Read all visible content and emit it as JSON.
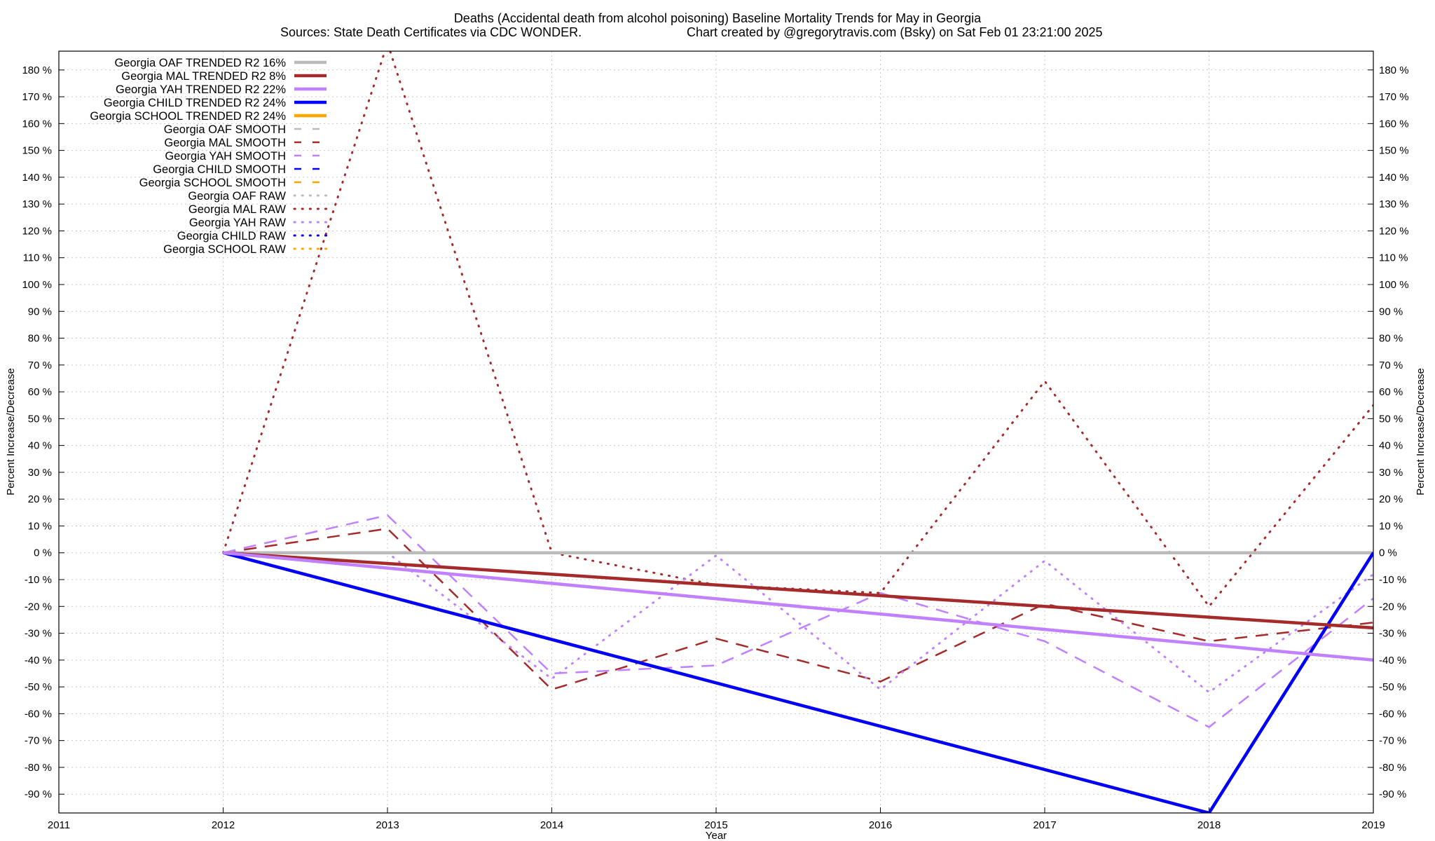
{
  "title": "Deaths (Accidental death from alcohol poisoning)  Baseline Mortality Trends for May in Georgia",
  "subtitle_left": "Sources: State Death Certificates via CDC WONDER.",
  "subtitle_right": "Chart created by @gregorytravis.com (Bsky) on Sat Feb 01 23:21:00 2025",
  "xlabel": "Year",
  "ylabel_left": "Percent Increase/Decrease",
  "ylabel_right": "Percent Increase/Decrease",
  "chart_data": {
    "type": "line",
    "title": "Deaths (Accidental death from alcohol poisoning)  Baseline Mortality Trends for May in Georgia",
    "xlabel": "Year",
    "ylabel": "Percent Increase/Decrease",
    "xlim": [
      2011,
      2019
    ],
    "ylim": [
      -97,
      187
    ],
    "x_ticks": [
      2011,
      2012,
      2013,
      2014,
      2015,
      2016,
      2017,
      2018,
      2019
    ],
    "y_ticks": [
      -90,
      -80,
      -70,
      -60,
      -50,
      -40,
      -30,
      -20,
      -10,
      0,
      10,
      20,
      30,
      40,
      50,
      60,
      70,
      80,
      90,
      100,
      110,
      120,
      130,
      140,
      150,
      160,
      170,
      180
    ],
    "y_tick_suffix": " %",
    "grid": true,
    "legend_position": "top-left",
    "series": [
      {
        "name": "Georgia OAF TRENDED R2  16%",
        "style": "solid",
        "color": "#bbbbbb",
        "width": 4.5,
        "x": [
          2012,
          2019
        ],
        "y": [
          0,
          0
        ]
      },
      {
        "name": "Georgia MAL TRENDED R2   8%",
        "style": "solid",
        "color": "#a52a2a",
        "width": 4.5,
        "x": [
          2012,
          2019
        ],
        "y": [
          0,
          -28
        ]
      },
      {
        "name": "Georgia YAH TRENDED R2  22%",
        "style": "solid",
        "color": "#c080ff",
        "width": 4.5,
        "x": [
          2012,
          2019
        ],
        "y": [
          0,
          -40
        ]
      },
      {
        "name": "Georgia CHILD TRENDED R2  24%",
        "style": "solid",
        "color": "#0000ff",
        "width": 4.5,
        "x": [
          2012,
          2018,
          2019
        ],
        "y": [
          0,
          -97,
          0
        ]
      },
      {
        "name": "Georgia SCHOOL TRENDED R2  24%",
        "style": "solid",
        "color": "#ffa500",
        "width": 4.5,
        "x": [
          2012,
          2018,
          2019
        ],
        "y": [
          0,
          -97,
          0
        ]
      },
      {
        "name": "Georgia OAF SMOOTH",
        "style": "dashed",
        "color": "#bbbbbb",
        "width": 2.5,
        "x": [
          2012,
          2013,
          2014,
          2015,
          2016,
          2017,
          2018,
          2019
        ],
        "y": [
          0,
          0,
          0,
          0,
          0,
          0,
          0,
          0
        ]
      },
      {
        "name": "Georgia MAL SMOOTH",
        "style": "dashed",
        "color": "#a52a2a",
        "width": 2.5,
        "x": [
          2012,
          2013,
          2014,
          2015,
          2016,
          2017,
          2018,
          2019
        ],
        "y": [
          0,
          9,
          -51,
          -32,
          -48,
          -19,
          -33,
          -26
        ]
      },
      {
        "name": "Georgia YAH SMOOTH",
        "style": "dashed",
        "color": "#c080ff",
        "width": 2.5,
        "x": [
          2012,
          2013,
          2014,
          2015,
          2016,
          2017,
          2018,
          2019
        ],
        "y": [
          0,
          14,
          -45,
          -42,
          -15,
          -33,
          -65,
          -17
        ]
      },
      {
        "name": "Georgia CHILD SMOOTH",
        "style": "dashed",
        "color": "#0000ff",
        "width": 2.5,
        "x": [],
        "y": []
      },
      {
        "name": "Georgia SCHOOL SMOOTH",
        "style": "dashed",
        "color": "#ffa500",
        "width": 2.5,
        "x": [],
        "y": []
      },
      {
        "name": "Georgia OAF RAW",
        "style": "dotted",
        "color": "#bbbbbb",
        "width": 3,
        "x": [
          2012,
          2013,
          2014,
          2015,
          2016,
          2017,
          2018,
          2019
        ],
        "y": [
          0,
          0,
          0,
          0,
          0,
          0,
          0,
          0
        ]
      },
      {
        "name": "Georgia MAL RAW",
        "style": "dotted",
        "color": "#a52a2a",
        "width": 3,
        "x": [
          2012,
          2013,
          2014,
          2015,
          2016,
          2017,
          2018,
          2019
        ],
        "y": [
          0,
          190,
          0,
          -12,
          -15,
          64,
          -20,
          55
        ]
      },
      {
        "name": "Georgia YAH RAW",
        "style": "dotted",
        "color": "#c080ff",
        "width": 3,
        "x": [
          2012,
          2013,
          2014,
          2015,
          2016,
          2017,
          2018,
          2019
        ],
        "y": [
          0,
          0,
          -47,
          -1,
          -51,
          -3,
          -52,
          -8
        ]
      },
      {
        "name": "Georgia CHILD RAW",
        "style": "dotted",
        "color": "#0000ff",
        "width": 3,
        "x": [],
        "y": []
      },
      {
        "name": "Georgia SCHOOL RAW",
        "style": "dotted",
        "color": "#ffa500",
        "width": 3,
        "x": [],
        "y": []
      }
    ]
  }
}
